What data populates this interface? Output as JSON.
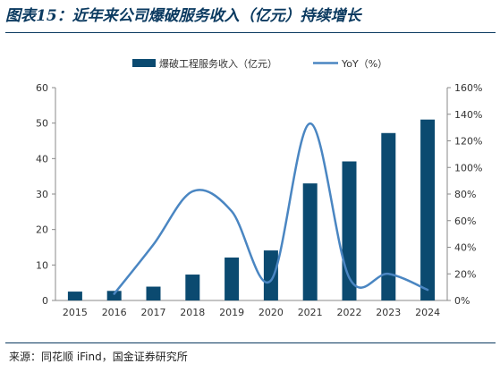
{
  "header": {
    "title": "图表15：近年来公司爆破服务收入（亿元）持续增长"
  },
  "footer": {
    "source": "来源：同花顺 iFind，国金证券研究所"
  },
  "colors": {
    "bar": "#0b4a70",
    "line": "#4a86c2",
    "rule": "#0b3a60"
  },
  "chart_data": {
    "type": "bar",
    "categories": [
      "2015",
      "2016",
      "2017",
      "2018",
      "2019",
      "2020",
      "2021",
      "2022",
      "2023",
      "2024"
    ],
    "series": [
      {
        "name": "爆破工程服务收入（亿元）",
        "type": "bar",
        "axis": "left",
        "values": [
          2.5,
          2.7,
          3.9,
          7.3,
          12.1,
          14.1,
          33.0,
          39.2,
          47.2,
          51.0
        ]
      },
      {
        "name": "YoY（%）",
        "type": "line",
        "axis": "right",
        "values": [
          null,
          5,
          42,
          82,
          67,
          15,
          133,
          17,
          20,
          8
        ]
      }
    ],
    "y_left": {
      "min": 0,
      "max": 60,
      "ticks": [
        "0",
        "10",
        "20",
        "30",
        "40",
        "50",
        "60"
      ]
    },
    "y_right": {
      "min": 0,
      "max": 160,
      "ticks": [
        "0%",
        "20%",
        "40%",
        "60%",
        "80%",
        "100%",
        "120%",
        "140%",
        "160%"
      ]
    },
    "grid": false,
    "legend_position": "top"
  }
}
